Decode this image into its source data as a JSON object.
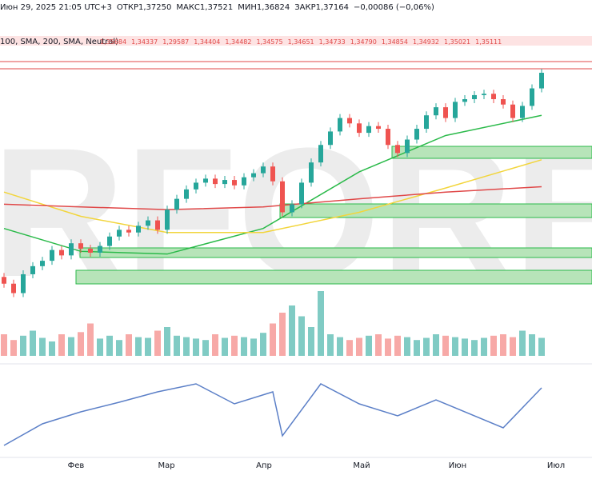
{
  "header": {
    "datetime": "Июн 29, 2025 21:05 UTC+3",
    "open": "ОТКР1,37250",
    "high": "МАКС1,37521",
    "low": "МИН1,36824",
    "close": "ЗАКР1,37164",
    "change": "−0,00086 (−0,06%)"
  },
  "indicator": {
    "label": "100, SMA, 200, SMA, Neutral)",
    "values": [
      "1,35684",
      "1,34337",
      "1,29587",
      "1,34404",
      "1,34482",
      "1,34575",
      "1,34651",
      "1,34733",
      "1,34790",
      "1,34854",
      "1,34932",
      "1,35021",
      "1,35111"
    ]
  },
  "watermark": "RFOREX",
  "chart_data": {
    "type": "candlestick",
    "ylim": [
      1.2,
      1.39
    ],
    "first_open": 1.22,
    "closes": [
      1.215,
      1.208,
      1.222,
      1.228,
      1.232,
      1.24,
      1.236,
      1.245,
      1.241,
      1.238,
      1.243,
      1.25,
      1.255,
      1.253,
      1.258,
      1.262,
      1.255,
      1.27,
      1.278,
      1.285,
      1.29,
      1.293,
      1.289,
      1.292,
      1.288,
      1.294,
      1.297,
      1.302,
      1.291,
      1.268,
      1.274,
      1.29,
      1.305,
      1.318,
      1.328,
      1.338,
      1.334,
      1.327,
      1.332,
      1.33,
      1.318,
      1.312,
      1.322,
      1.33,
      1.34,
      1.346,
      1.338,
      1.35,
      1.352,
      1.355,
      1.356,
      1.352,
      1.348,
      1.338,
      1.347,
      1.36,
      1.3716
    ],
    "volume": [
      30,
      22,
      28,
      35,
      25,
      20,
      30,
      26,
      33,
      45,
      24,
      28,
      22,
      30,
      26,
      25,
      35,
      40,
      28,
      26,
      24,
      22,
      30,
      25,
      28,
      26,
      24,
      32,
      45,
      60,
      70,
      55,
      40,
      90,
      30,
      26,
      22,
      25,
      28,
      30,
      24,
      28,
      26,
      22,
      25,
      30,
      28,
      26,
      24,
      22,
      25,
      28,
      30,
      26,
      35,
      30,
      25
    ],
    "volume_ylim": [
      0,
      100
    ],
    "averages": [
      {
        "name": "SMA 50",
        "color": "#2bba4a",
        "x": [
          0,
          8,
          17,
          27,
          37,
          46,
          56
        ],
        "values": [
          1.256,
          1.239,
          1.237,
          1.256,
          1.298,
          1.325,
          1.34
        ]
      },
      {
        "name": "SMA 100",
        "color": "#f2d53c",
        "x": [
          0,
          8,
          17,
          27,
          37,
          46,
          56
        ],
        "values": [
          1.283,
          1.265,
          1.253,
          1.253,
          1.268,
          1.286,
          1.307
        ]
      },
      {
        "name": "SMA 200",
        "color": "#e04848",
        "x": [
          0,
          8,
          17,
          27,
          37,
          46,
          56
        ],
        "values": [
          1.274,
          1.272,
          1.27,
          1.272,
          1.278,
          1.283,
          1.287
        ]
      }
    ],
    "oscillator": {
      "x": [
        0,
        4,
        8,
        12,
        16,
        20,
        24,
        28,
        29,
        33,
        37,
        41,
        45,
        52,
        56
      ],
      "values": [
        8,
        35,
        50,
        62,
        75,
        85,
        60,
        75,
        20,
        85,
        60,
        45,
        65,
        30,
        80
      ],
      "ylim": [
        0,
        100
      ]
    },
    "months": [
      "Фев",
      "Мар",
      "Апр",
      "Май",
      "Июн",
      "Июл"
    ]
  }
}
